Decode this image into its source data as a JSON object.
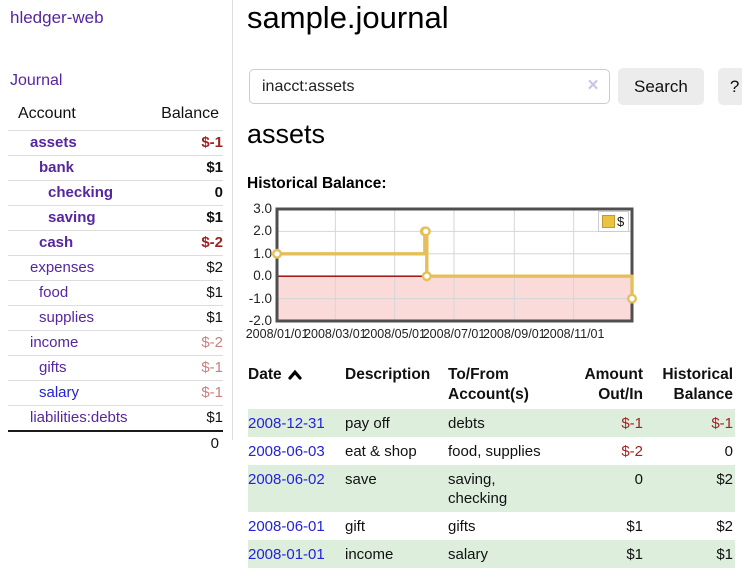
{
  "sidebar": {
    "brand": "hledger-web",
    "journal_link": "Journal",
    "accounts": {
      "headers": {
        "account": "Account",
        "balance": "Balance"
      },
      "rows": [
        {
          "name": "assets",
          "balance": "$-1",
          "name_class": "d1 b",
          "balance_class": "b neg-strong"
        },
        {
          "name": "bank",
          "balance": "$1",
          "name_class": "d2 b",
          "balance_class": "b"
        },
        {
          "name": "checking",
          "balance": "0",
          "name_class": "d3 b",
          "balance_class": "b"
        },
        {
          "name": "saving",
          "balance": "$1",
          "name_class": "d3 b",
          "balance_class": "b"
        },
        {
          "name": "cash",
          "balance": "$-2",
          "name_class": "d2 b",
          "balance_class": "b neg-strong"
        },
        {
          "name": "expenses",
          "balance": "$2",
          "name_class": "d1",
          "balance_class": ""
        },
        {
          "name": "food",
          "balance": "$1",
          "name_class": "d2",
          "balance_class": ""
        },
        {
          "name": "supplies",
          "balance": "$1",
          "name_class": "d2",
          "balance_class": ""
        },
        {
          "name": "income",
          "balance": "$-2",
          "name_class": "d1",
          "balance_class": "neg-muted"
        },
        {
          "name": "gifts",
          "balance": "$-1",
          "name_class": "d2",
          "balance_class": "neg-muted"
        },
        {
          "name": "salary",
          "balance": "$-1",
          "name_class": "d2 blue",
          "balance_class": "neg-muted"
        },
        {
          "name": "liabilities:debts",
          "balance": "$1",
          "name_class": "d1",
          "balance_class": ""
        }
      ],
      "total": "0"
    }
  },
  "main": {
    "title": "sample.journal",
    "search": {
      "value": "inacct:assets",
      "clear_icon": "×",
      "search_button": "Search",
      "help_button": "?"
    },
    "account_heading": "assets",
    "chart_heading": "Historical Balance:",
    "transactions": {
      "headers": {
        "date": "Date",
        "sort_icon": "chevron-up",
        "description": "Description",
        "tofrom_line1": "To/From",
        "tofrom_line2": "Account(s)",
        "amount_line1": "Amount",
        "amount_line2": "Out/In",
        "hist_line1": "Historical",
        "hist_line2": "Balance"
      },
      "rows": [
        {
          "date": "2008-12-31",
          "description": "pay off",
          "accounts": "debts",
          "amount": "$-1",
          "amount_class": "neg",
          "balance": "$-1",
          "balance_class": "neg",
          "stripe": "stripe"
        },
        {
          "date": "2008-06-03",
          "description": "eat & shop",
          "accounts": "food, supplies",
          "amount": "$-2",
          "amount_class": "neg",
          "balance": "0",
          "balance_class": "",
          "stripe": ""
        },
        {
          "date": "2008-06-02",
          "description": "save",
          "accounts": "saving,\nchecking",
          "amount": "0",
          "amount_class": "",
          "balance": "$2",
          "balance_class": "",
          "stripe": "stripe"
        },
        {
          "date": "2008-06-01",
          "description": "gift",
          "accounts": "gifts",
          "amount": "$1",
          "amount_class": "",
          "balance": "$2",
          "balance_class": "",
          "stripe": ""
        },
        {
          "date": "2008-01-01",
          "description": "income",
          "accounts": "salary",
          "amount": "$1",
          "amount_class": "",
          "balance": "$1",
          "balance_class": "",
          "stripe": "stripe"
        }
      ]
    }
  },
  "chart_data": {
    "type": "line",
    "step": true,
    "title": "Historical Balance",
    "series": [
      {
        "name": "$",
        "x": [
          "2008-01-01",
          "2008-06-01",
          "2008-06-02",
          "2008-06-03",
          "2008-12-31"
        ],
        "values": [
          1,
          2,
          2,
          0,
          -1
        ],
        "point_days": [
          0,
          152,
          153,
          154,
          365
        ]
      }
    ],
    "x_ticks": [
      "2008/01/01",
      "2008/03/01",
      "2008/05/01",
      "2008/07/01",
      "2008/09/01",
      "2008/11/01"
    ],
    "x_tick_days": [
      0,
      60,
      121,
      182,
      244,
      305
    ],
    "x_range_days": 365,
    "y_ticks": [
      "3.0",
      "2.0",
      "1.0",
      "0.0",
      "-1.0",
      "-2.0"
    ],
    "ylim": [
      -2,
      3
    ],
    "grid": true,
    "legend": {
      "label": "$",
      "position": "top-right"
    },
    "colors": {
      "line": "#e5c05a",
      "point_fill": "#ffffff",
      "negative_region": "#fbdada",
      "zero_line": "#990000",
      "grid": "#d6d6d6",
      "border": "#4f4f4f",
      "legend_swatch": "#eac343",
      "legend_swatch_border": "#bf9c30"
    }
  }
}
